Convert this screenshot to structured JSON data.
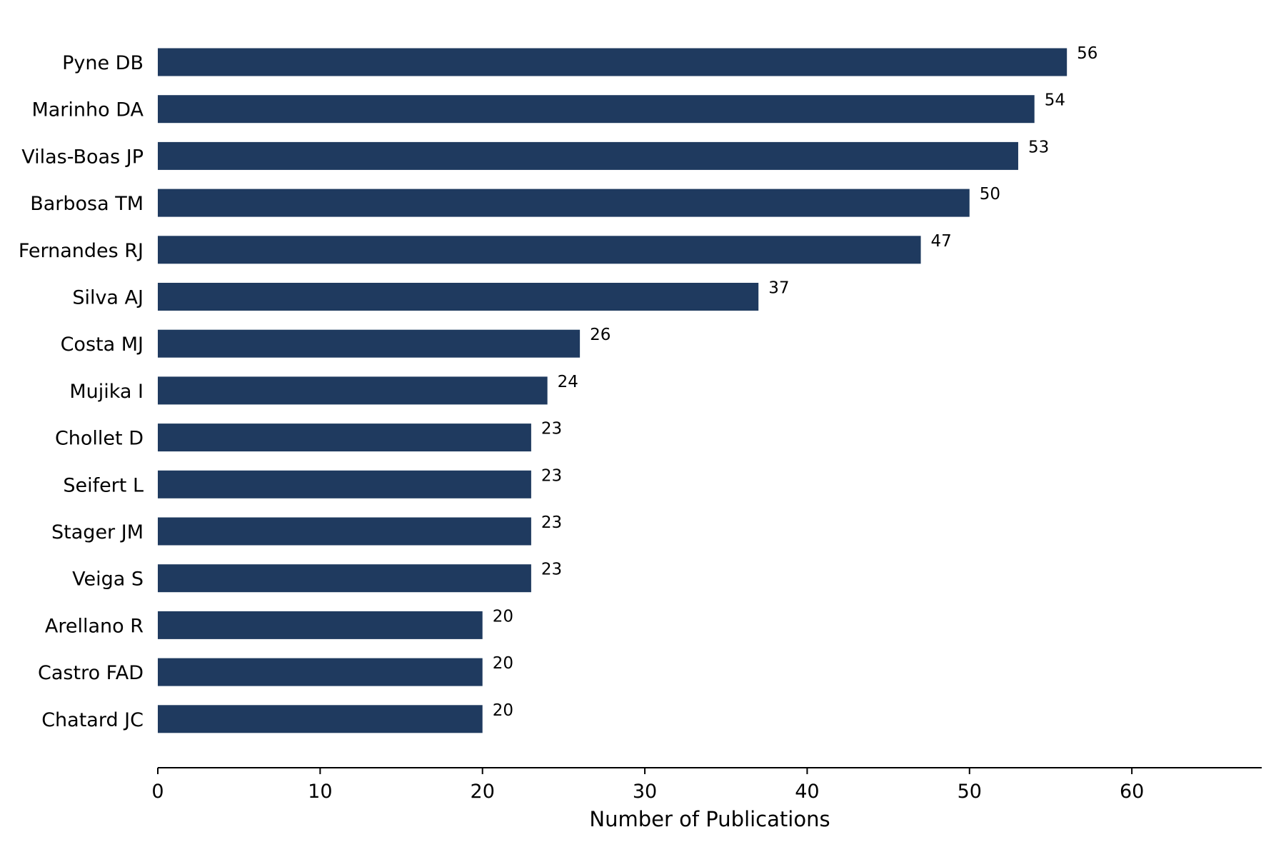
{
  "chart_data": {
    "type": "bar",
    "orientation": "horizontal",
    "title": "",
    "xlabel": "Number of Publications",
    "ylabel": "",
    "categories": [
      "Pyne DB",
      "Marinho DA",
      "Vilas-Boas JP",
      "Barbosa TM",
      "Fernandes RJ",
      "Silva AJ",
      "Costa MJ",
      "Mujika I",
      "Chollet D",
      "Seifert L",
      "Stager JM",
      "Veiga S",
      "Arellano R",
      "Castro FAD",
      "Chatard JC"
    ],
    "values": [
      56,
      54,
      53,
      50,
      47,
      37,
      26,
      24,
      23,
      23,
      23,
      23,
      20,
      20,
      20
    ],
    "xlim": [
      0,
      68
    ],
    "xticks": [
      0,
      10,
      20,
      30,
      40,
      50,
      60
    ],
    "grid": false,
    "legend": "none",
    "bar_color": "#1f3a5f",
    "show_value_labels": true
  }
}
